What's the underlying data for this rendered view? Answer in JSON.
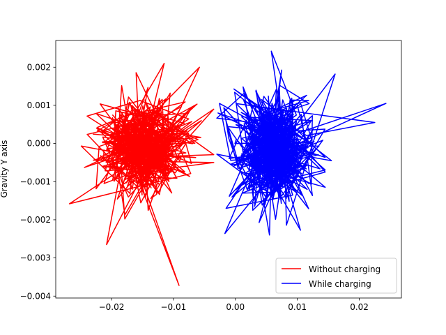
{
  "chart_data": {
    "type": "line",
    "title": "",
    "xlabel": "",
    "ylabel": "Gravity Y axis",
    "xlim": [
      -0.029,
      0.0268
    ],
    "ylim": [
      -0.00405,
      0.0027
    ],
    "x_ticks": [
      -0.02,
      -0.01,
      0.0,
      0.01,
      0.02
    ],
    "x_tick_labels": [
      "−0.02",
      "−0.01",
      "0.00",
      "0.01",
      "0.02"
    ],
    "y_ticks": [
      -0.004,
      -0.003,
      -0.002,
      -0.001,
      0.0,
      0.001,
      0.002
    ],
    "y_tick_labels": [
      "−0.004",
      "−0.003",
      "−0.002",
      "−0.001",
      "0.000",
      "0.001",
      "0.002"
    ],
    "grid": false,
    "legend_position": "lower right",
    "series": [
      {
        "name": "Without charging",
        "color": "#ff0000",
        "cluster": {
          "x_mean": -0.0145,
          "x_sd": 0.0038,
          "y_mean": -0.0001,
          "y_sd": 0.0006,
          "x_min": -0.0265,
          "x_max": -0.0035,
          "y_min": -0.0025,
          "y_max": 0.0021,
          "n": 500
        },
        "outliers": [
          [
            -0.0268,
            -0.00158
          ],
          [
            -0.0208,
            -0.00265
          ],
          [
            -0.0091,
            -0.00372
          ],
          [
            -0.0058,
            0.002
          ],
          [
            -0.0035,
            -0.0005
          ],
          [
            -0.0055,
            0.0006
          ],
          [
            -0.0115,
            0.0021
          ]
        ]
      },
      {
        "name": "While charging",
        "color": "#0000ff",
        "cluster": {
          "x_mean": 0.0065,
          "x_sd": 0.0033,
          "y_mean": -0.0002,
          "y_sd": 0.0007,
          "x_min": -0.003,
          "x_max": 0.0145,
          "y_min": -0.0023,
          "y_max": 0.0024,
          "n": 500
        },
        "outliers": [
          [
            0.0155,
            -0.00045
          ],
          [
            0.0161,
            0.00182
          ],
          [
            0.0225,
            0.00055
          ],
          [
            0.0243,
            0.00105
          ],
          [
            -0.0017,
            -0.00236
          ],
          [
            -0.0015,
            -0.0017
          ],
          [
            0.0058,
            0.00242
          ],
          [
            0.0055,
            -0.0024
          ],
          [
            -0.0028,
            0.0008
          ]
        ]
      }
    ]
  }
}
